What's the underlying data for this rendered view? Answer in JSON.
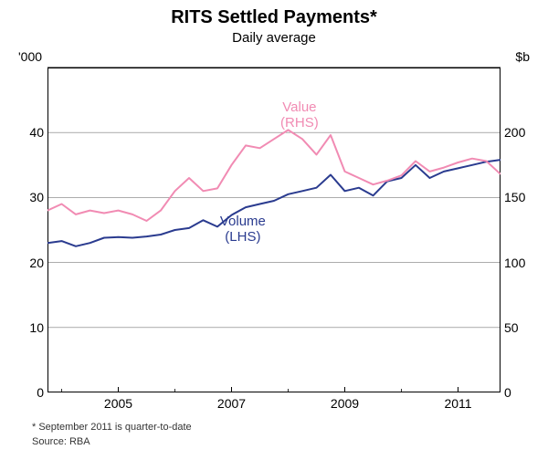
{
  "title": "RITS Settled Payments*",
  "subtitle": "Daily average",
  "unit_left": "'000",
  "unit_right": "$b",
  "footnote": "*   September 2011 is quarter-to-date",
  "source": "Source: RBA",
  "chart": {
    "type": "line",
    "background_color": "#ffffff",
    "border_color": "#000000",
    "grid_color": "#7a7a7a",
    "grid_width": 0.6,
    "x_range": [
      2003.75,
      2011.75
    ],
    "y_left": {
      "min": 0,
      "max": 50,
      "ticks": [
        0,
        10,
        20,
        30,
        40
      ]
    },
    "y_right": {
      "min": 0,
      "max": 250,
      "ticks": [
        0,
        50,
        100,
        150,
        200
      ]
    },
    "x_ticks": [
      2005,
      2007,
      2009,
      2011
    ],
    "series": [
      {
        "name": "Volume (LHS)",
        "label_text": "Volume\n(LHS)",
        "color": "#2a3b8f",
        "line_width": 2,
        "axis": "left",
        "label_pos": {
          "x": 2007.2,
          "y": 25
        },
        "data": [
          [
            2003.75,
            23.0
          ],
          [
            2004.0,
            23.3
          ],
          [
            2004.25,
            22.5
          ],
          [
            2004.5,
            23.0
          ],
          [
            2004.75,
            23.8
          ],
          [
            2005.0,
            23.9
          ],
          [
            2005.25,
            23.8
          ],
          [
            2005.5,
            24.0
          ],
          [
            2005.75,
            24.3
          ],
          [
            2006.0,
            25.0
          ],
          [
            2006.25,
            25.3
          ],
          [
            2006.5,
            26.5
          ],
          [
            2006.75,
            25.5
          ],
          [
            2007.0,
            27.3
          ],
          [
            2007.25,
            28.5
          ],
          [
            2007.5,
            29.0
          ],
          [
            2007.75,
            29.5
          ],
          [
            2008.0,
            30.5
          ],
          [
            2008.25,
            31.0
          ],
          [
            2008.5,
            31.5
          ],
          [
            2008.75,
            33.5
          ],
          [
            2009.0,
            31.0
          ],
          [
            2009.25,
            31.5
          ],
          [
            2009.5,
            30.3
          ],
          [
            2009.75,
            32.5
          ],
          [
            2010.0,
            33.0
          ],
          [
            2010.25,
            35.0
          ],
          [
            2010.5,
            33.0
          ],
          [
            2010.75,
            34.0
          ],
          [
            2011.0,
            34.5
          ],
          [
            2011.25,
            35.0
          ],
          [
            2011.5,
            35.5
          ],
          [
            2011.75,
            35.8
          ]
        ]
      },
      {
        "name": "Value (RHS)",
        "label_text": "Value\n(RHS)",
        "color": "#f18bb3",
        "line_width": 2,
        "axis": "right",
        "label_pos": {
          "x": 2008.2,
          "y_right": 213
        },
        "data": [
          [
            2003.75,
            140
          ],
          [
            2004.0,
            145
          ],
          [
            2004.25,
            137
          ],
          [
            2004.5,
            140
          ],
          [
            2004.75,
            138
          ],
          [
            2005.0,
            140
          ],
          [
            2005.25,
            137
          ],
          [
            2005.5,
            132
          ],
          [
            2005.75,
            140
          ],
          [
            2006.0,
            155
          ],
          [
            2006.25,
            165
          ],
          [
            2006.5,
            155
          ],
          [
            2006.75,
            157
          ],
          [
            2007.0,
            175
          ],
          [
            2007.25,
            190
          ],
          [
            2007.5,
            188
          ],
          [
            2007.75,
            195
          ],
          [
            2008.0,
            202
          ],
          [
            2008.25,
            195
          ],
          [
            2008.5,
            183
          ],
          [
            2008.75,
            198
          ],
          [
            2009.0,
            170
          ],
          [
            2009.25,
            165
          ],
          [
            2009.5,
            160
          ],
          [
            2009.75,
            163
          ],
          [
            2010.0,
            167
          ],
          [
            2010.25,
            178
          ],
          [
            2010.5,
            170
          ],
          [
            2010.75,
            173
          ],
          [
            2011.0,
            177
          ],
          [
            2011.25,
            180
          ],
          [
            2011.5,
            178
          ],
          [
            2011.75,
            168
          ]
        ]
      }
    ]
  }
}
